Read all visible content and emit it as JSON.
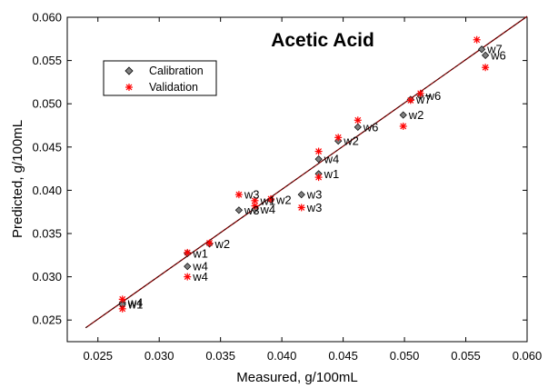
{
  "chart_data": {
    "type": "scatter",
    "title": "Acetic Acid",
    "xlabel": "Measured, g/100mL",
    "ylabel": "Predicted, g/100mL",
    "xlim": [
      0.0225,
      0.06
    ],
    "ylim": [
      0.0225,
      0.06
    ],
    "x_ticks": [
      0.025,
      0.03,
      0.035,
      0.04,
      0.045,
      0.05,
      0.055,
      0.06
    ],
    "x_tick_labels": [
      "0.025",
      "0.030",
      "0.035",
      "0.040",
      "0.045",
      "0.050",
      "0.055",
      "0.060"
    ],
    "y_ticks": [
      0.025,
      0.03,
      0.035,
      0.04,
      0.045,
      0.05,
      0.055,
      0.06
    ],
    "y_tick_labels": [
      "0.025",
      "0.030",
      "0.035",
      "0.040",
      "0.045",
      "0.050",
      "0.055",
      "0.060"
    ],
    "grid": false,
    "legend_position": "top-left",
    "identity_line": {
      "x": [
        0.024,
        0.06
      ],
      "y": [
        0.0241,
        0.0601
      ],
      "color": "#8b0000"
    },
    "series": [
      {
        "name": "Calibration",
        "marker": "diamond",
        "color": "#808080",
        "points": [
          {
            "x": 0.027,
            "y": 0.027,
            "label": "w4"
          },
          {
            "x": 0.027,
            "y": 0.0268,
            "label": "w1"
          },
          {
            "x": 0.0323,
            "y": 0.0327,
            "label": "w1"
          },
          {
            "x": 0.0323,
            "y": 0.0312,
            "label": "w4"
          },
          {
            "x": 0.0341,
            "y": 0.0338,
            "label": "w2"
          },
          {
            "x": 0.0365,
            "y": 0.0377,
            "label": "w3"
          },
          {
            "x": 0.0378,
            "y": 0.0378,
            "label": "w4"
          },
          {
            "x": 0.0391,
            "y": 0.0389,
            "label": "w2"
          },
          {
            "x": 0.0416,
            "y": 0.0395,
            "label": "w3"
          },
          {
            "x": 0.043,
            "y": 0.0419,
            "label": "w1"
          },
          {
            "x": 0.043,
            "y": 0.0436,
            "label": "w4"
          },
          {
            "x": 0.0446,
            "y": 0.0457,
            "label": "w2"
          },
          {
            "x": 0.0462,
            "y": 0.0473,
            "label": "w6"
          },
          {
            "x": 0.0499,
            "y": 0.0487,
            "label": "w2"
          },
          {
            "x": 0.0505,
            "y": 0.0505,
            "label": "w7"
          },
          {
            "x": 0.0513,
            "y": 0.0509,
            "label": "w6"
          },
          {
            "x": 0.0563,
            "y": 0.0563,
            "label": "w7"
          },
          {
            "x": 0.0566,
            "y": 0.0556,
            "label": "w6"
          }
        ]
      },
      {
        "name": "Validation",
        "marker": "asterisk",
        "color": "#ff0000",
        "points": [
          {
            "x": 0.027,
            "y": 0.0274,
            "label": ""
          },
          {
            "x": 0.027,
            "y": 0.0263,
            "label": ""
          },
          {
            "x": 0.0323,
            "y": 0.0328,
            "label": ""
          },
          {
            "x": 0.0323,
            "y": 0.03,
            "label": "w4"
          },
          {
            "x": 0.0341,
            "y": 0.0339,
            "label": ""
          },
          {
            "x": 0.0365,
            "y": 0.0395,
            "label": "w3"
          },
          {
            "x": 0.0378,
            "y": 0.0388,
            "label": "w1"
          },
          {
            "x": 0.0378,
            "y": 0.0382,
            "label": ""
          },
          {
            "x": 0.0391,
            "y": 0.039,
            "label": ""
          },
          {
            "x": 0.0416,
            "y": 0.038,
            "label": "w3"
          },
          {
            "x": 0.043,
            "y": 0.0445,
            "label": ""
          },
          {
            "x": 0.043,
            "y": 0.0415,
            "label": ""
          },
          {
            "x": 0.0446,
            "y": 0.0461,
            "label": ""
          },
          {
            "x": 0.0462,
            "y": 0.0481,
            "label": ""
          },
          {
            "x": 0.0499,
            "y": 0.0474,
            "label": ""
          },
          {
            "x": 0.0505,
            "y": 0.0504,
            "label": ""
          },
          {
            "x": 0.0513,
            "y": 0.0512,
            "label": ""
          },
          {
            "x": 0.0559,
            "y": 0.0574,
            "label": ""
          },
          {
            "x": 0.0566,
            "y": 0.0542,
            "label": ""
          }
        ]
      }
    ]
  }
}
